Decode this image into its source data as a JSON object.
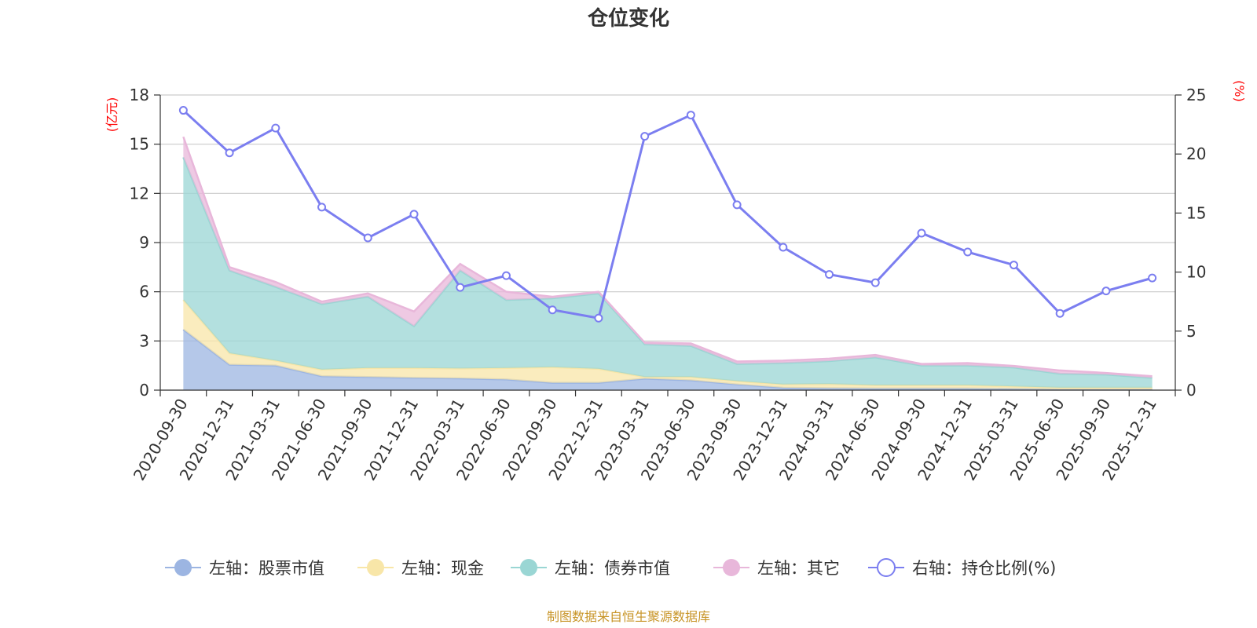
{
  "chart_data": {
    "type": "area",
    "title": "仓位变化",
    "left_unit": "(亿元)",
    "right_unit": "(%)",
    "source": "制图数据来自恒生聚源数据库",
    "categories": [
      "2020-09-30",
      "2020-12-31",
      "2021-03-31",
      "2021-06-30",
      "2021-09-30",
      "2021-12-31",
      "2022-03-31",
      "2022-06-30",
      "2022-09-30",
      "2022-12-31",
      "2023-03-31",
      "2023-06-30",
      "2023-09-30",
      "2023-12-31",
      "2024-03-31",
      "2024-06-30",
      "2024-09-30",
      "2024-12-31",
      "2025-03-31",
      "2025-06-30",
      "2025-09-30",
      "2025-12-31"
    ],
    "left_axis": {
      "min": 0,
      "max": 18,
      "ticks": [
        "0",
        "3",
        "6",
        "9",
        "12",
        "15",
        "18"
      ]
    },
    "right_axis": {
      "min": 0,
      "max": 25,
      "ticks": [
        "0",
        "5",
        "10",
        "15",
        "20",
        "25"
      ]
    },
    "series": [
      {
        "name": "左轴：股票市值",
        "axis": "left",
        "stack": true,
        "color": "#9cb5e2",
        "values": [
          3.7,
          1.55,
          1.5,
          0.85,
          0.8,
          0.75,
          0.72,
          0.65,
          0.45,
          0.45,
          0.7,
          0.6,
          0.35,
          0.15,
          0.12,
          0.1,
          0.1,
          0.1,
          0.08,
          0.05,
          0.05,
          0.05
        ]
      },
      {
        "name": "左轴：现金",
        "axis": "left",
        "stack": true,
        "color": "#f8e6a8",
        "values": [
          1.8,
          0.7,
          0.3,
          0.4,
          0.55,
          0.6,
          0.6,
          0.7,
          0.95,
          0.85,
          0.1,
          0.2,
          0.2,
          0.2,
          0.25,
          0.2,
          0.2,
          0.2,
          0.15,
          0.1,
          0.1,
          0.1
        ]
      },
      {
        "name": "左轴：债券市值",
        "axis": "left",
        "stack": true,
        "color": "#9ad6d4",
        "values": [
          8.7,
          5.05,
          4.5,
          4.0,
          4.35,
          2.55,
          5.98,
          4.15,
          4.2,
          4.6,
          2.0,
          1.9,
          1.05,
          1.3,
          1.4,
          1.7,
          1.2,
          1.2,
          1.15,
          0.85,
          0.8,
          0.6
        ]
      },
      {
        "name": "左轴：其它",
        "axis": "left",
        "stack": true,
        "color": "#e8b7da",
        "values": [
          1.25,
          0.2,
          0.3,
          0.15,
          0.2,
          0.9,
          0.4,
          0.5,
          0.1,
          0.1,
          0.1,
          0.15,
          0.15,
          0.15,
          0.15,
          0.15,
          0.1,
          0.15,
          0.1,
          0.2,
          0.1,
          0.1
        ]
      },
      {
        "name": "右轴：持仓比例(%)",
        "axis": "right",
        "stack": false,
        "type": "line",
        "color": "#7b7ef0",
        "values": [
          23.7,
          20.1,
          22.2,
          15.5,
          12.9,
          14.9,
          8.7,
          9.7,
          6.8,
          6.1,
          21.5,
          23.3,
          15.7,
          12.1,
          9.8,
          9.1,
          13.3,
          11.7,
          10.6,
          6.5,
          8.4,
          9.5
        ]
      }
    ]
  }
}
